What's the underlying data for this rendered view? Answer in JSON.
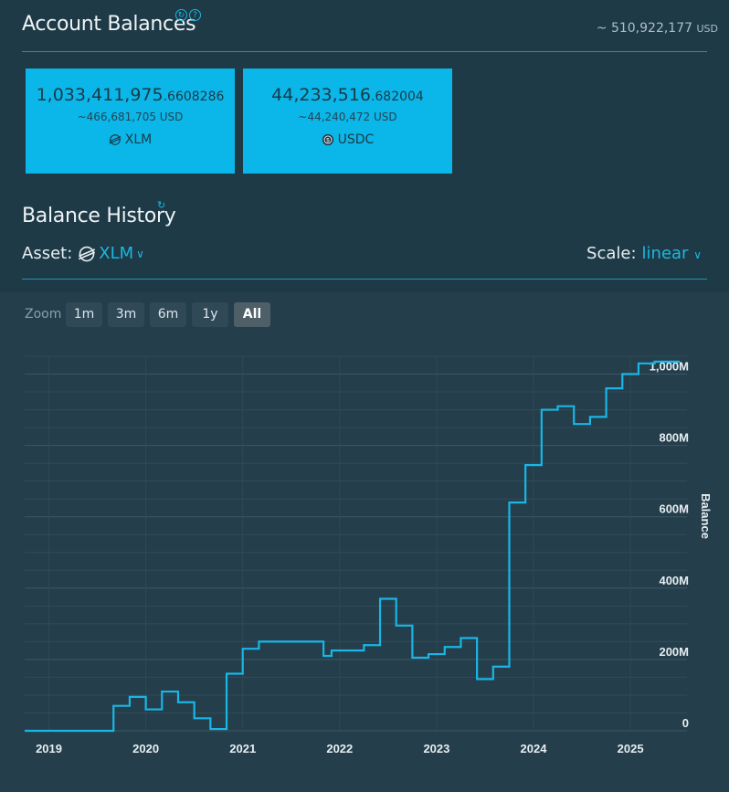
{
  "header": {
    "title": "Account Balances",
    "total_prefix": "~ ",
    "total_value": "510,922,177",
    "total_unit": "USD"
  },
  "cards": [
    {
      "amount_int": "1,033,411,975",
      "amount_frac": ".6608286",
      "usd": "~466,681,705 USD",
      "asset": "XLM",
      "icon": "stellar-icon"
    },
    {
      "amount_int": "44,233,516",
      "amount_frac": ".682004",
      "usd": "~44,240,472 USD",
      "asset": "USDC",
      "icon": "usdc-icon"
    }
  ],
  "history": {
    "title": "Balance History",
    "asset_label": "Asset:",
    "asset_value": "XLM",
    "scale_label": "Scale:",
    "scale_value": "linear"
  },
  "zoom": {
    "label": "Zoom",
    "buttons": [
      "1m",
      "3m",
      "6m",
      "1y",
      "All"
    ],
    "active": "All"
  },
  "colors": {
    "accent": "#1ab8e0",
    "card": "#0bb6e8",
    "line": "#19b6e6",
    "background": "#1f3a47"
  },
  "chart_data": {
    "type": "line",
    "step": true,
    "ylabel": "Balance",
    "ylim": [
      0,
      1050
    ],
    "y_unit": "M",
    "y_ticks": [
      {
        "v": 0,
        "label": "0"
      },
      {
        "v": 200,
        "label": "200M"
      },
      {
        "v": 400,
        "label": "400M"
      },
      {
        "v": 600,
        "label": "600M"
      },
      {
        "v": 800,
        "label": "800M"
      },
      {
        "v": 1000,
        "label": "1,000M"
      }
    ],
    "x_ticks": [
      "2019",
      "2020",
      "2021",
      "2022",
      "2023",
      "2024",
      "2025"
    ],
    "xlim": [
      "2018-10",
      "2025-08"
    ],
    "grid": true,
    "series": [
      {
        "x": [
          "2018-10",
          "2019-09",
          "2019-11",
          "2020-01",
          "2020-03",
          "2020-05",
          "2020-07",
          "2020-09",
          "2020-11",
          "2021-01",
          "2021-03",
          "2021-11",
          "2021-12",
          "2022-04",
          "2022-06",
          "2022-08",
          "2022-10",
          "2022-12",
          "2023-02",
          "2023-04",
          "2023-06",
          "2023-08",
          "2023-10",
          "2023-12",
          "2024-02",
          "2024-04",
          "2024-06",
          "2024-08",
          "2024-10",
          "2024-12",
          "2025-02",
          "2025-04",
          "2025-06",
          "2025-07"
        ],
        "y": [
          0,
          70,
          95,
          60,
          110,
          80,
          35,
          5,
          160,
          230,
          250,
          210,
          225,
          240,
          370,
          295,
          205,
          215,
          235,
          260,
          145,
          180,
          640,
          745,
          900,
          910,
          860,
          880,
          960,
          1000,
          1030,
          1035,
          1035,
          1035
        ]
      }
    ]
  }
}
